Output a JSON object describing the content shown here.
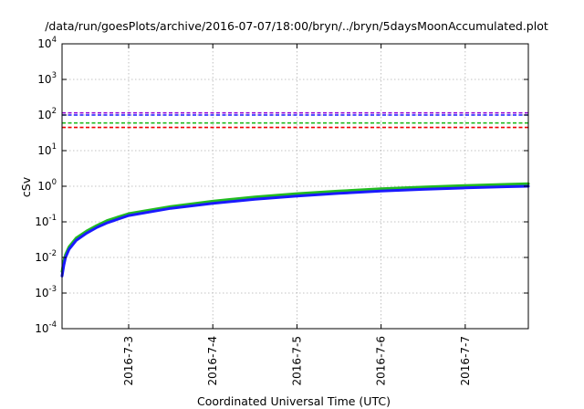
{
  "chart_data": {
    "type": "line",
    "title": "/data/run/goesPlots/archive/2016-07-07/18:00/bryn/../bryn/5daysMoonAccumulated.plot",
    "xlabel": "Coordinated Universal Time (UTC)",
    "ylabel": "cSv",
    "y_scale": "log",
    "grid": true,
    "legend": "none",
    "x_tick_labels": [
      "2016-7-3",
      "2016-7-4",
      "2016-7-5",
      "2016-7-6",
      "2016-7-7"
    ],
    "y_tick_labels": [
      {
        "base": "10",
        "exp": "4"
      },
      {
        "base": "10",
        "exp": "3"
      },
      {
        "base": "10",
        "exp": "2"
      },
      {
        "base": "10",
        "exp": "1"
      },
      {
        "base": "10",
        "exp": "0"
      },
      {
        "base": "10",
        "exp": "-1"
      },
      {
        "base": "10",
        "exp": "-2"
      },
      {
        "base": "10",
        "exp": "-3"
      },
      {
        "base": "10",
        "exp": "-4"
      }
    ],
    "y_ticks": [
      10000,
      1000,
      100,
      10,
      1,
      0.1,
      0.01,
      0.001,
      0.0001
    ],
    "x_ticks": [
      "2016-07-03",
      "2016-07-04",
      "2016-07-05",
      "2016-07-06",
      "2016-07-07"
    ],
    "xlim": [
      "2016-07-02 05:00",
      "2016-07-07 18:00"
    ],
    "ylim": [
      0.0001,
      10000
    ],
    "thresholds": [
      {
        "color": "#9400d3",
        "value": 115,
        "style": "dashed"
      },
      {
        "color": "#1a1aff",
        "value": 100,
        "style": "dashed"
      },
      {
        "color": "#22bb22",
        "value": 60,
        "style": "dashed"
      },
      {
        "color": "#ee0000",
        "value": 45,
        "style": "dashed"
      }
    ],
    "series": [
      {
        "color": "#22bb22",
        "points": [
          [
            "2016-07-02 05:00",
            0.004
          ],
          [
            "2016-07-02 05:30",
            0.008
          ],
          [
            "2016-07-02 06:00",
            0.012
          ],
          [
            "2016-07-02 07:00",
            0.02
          ],
          [
            "2016-07-02 09:00",
            0.035
          ],
          [
            "2016-07-02 12:00",
            0.055
          ],
          [
            "2016-07-02 15:00",
            0.08
          ],
          [
            "2016-07-02 18:00",
            0.11
          ],
          [
            "2016-07-03 00:00",
            0.17
          ],
          [
            "2016-07-03 12:00",
            0.27
          ],
          [
            "2016-07-04 00:00",
            0.38
          ],
          [
            "2016-07-04 12:00",
            0.5
          ],
          [
            "2016-07-05 00:00",
            0.62
          ],
          [
            "2016-07-05 12:00",
            0.73
          ],
          [
            "2016-07-06 00:00",
            0.85
          ],
          [
            "2016-07-06 12:00",
            0.95
          ],
          [
            "2016-07-07 00:00",
            1.05
          ],
          [
            "2016-07-07 12:00",
            1.13
          ],
          [
            "2016-07-07 18:00",
            1.18
          ]
        ]
      },
      {
        "color": "#1a1aff",
        "points": [
          [
            "2016-07-02 05:00",
            0.003
          ],
          [
            "2016-07-02 05:30",
            0.006
          ],
          [
            "2016-07-02 06:00",
            0.01
          ],
          [
            "2016-07-02 07:00",
            0.017
          ],
          [
            "2016-07-02 09:00",
            0.03
          ],
          [
            "2016-07-02 12:00",
            0.048
          ],
          [
            "2016-07-02 15:00",
            0.07
          ],
          [
            "2016-07-02 18:00",
            0.095
          ],
          [
            "2016-07-03 00:00",
            0.15
          ],
          [
            "2016-07-03 12:00",
            0.24
          ],
          [
            "2016-07-04 00:00",
            0.33
          ],
          [
            "2016-07-04 12:00",
            0.43
          ],
          [
            "2016-07-05 00:00",
            0.53
          ],
          [
            "2016-07-05 12:00",
            0.63
          ],
          [
            "2016-07-06 00:00",
            0.73
          ],
          [
            "2016-07-06 12:00",
            0.82
          ],
          [
            "2016-07-07 00:00",
            0.9
          ],
          [
            "2016-07-07 12:00",
            0.97
          ],
          [
            "2016-07-07 18:00",
            1.0
          ]
        ]
      }
    ]
  }
}
